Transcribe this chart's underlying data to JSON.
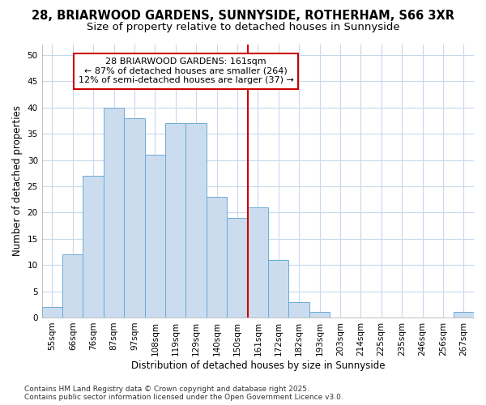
{
  "title_line1": "28, BRIARWOOD GARDENS, SUNNYSIDE, ROTHERHAM, S66 3XR",
  "title_line2": "Size of property relative to detached houses in Sunnyside",
  "xlabel": "Distribution of detached houses by size in Sunnyside",
  "ylabel": "Number of detached properties",
  "categories": [
    "55sqm",
    "66sqm",
    "76sqm",
    "87sqm",
    "97sqm",
    "108sqm",
    "119sqm",
    "129sqm",
    "140sqm",
    "150sqm",
    "161sqm",
    "172sqm",
    "182sqm",
    "193sqm",
    "203sqm",
    "214sqm",
    "225sqm",
    "235sqm",
    "246sqm",
    "256sqm",
    "267sqm"
  ],
  "values": [
    2,
    12,
    27,
    40,
    38,
    31,
    37,
    37,
    23,
    19,
    21,
    11,
    3,
    1,
    0,
    0,
    0,
    0,
    0,
    0,
    1
  ],
  "bar_color": "#ccdcef",
  "bar_edge_color": "#6aaad4",
  "red_line_index": 10,
  "red_line_color": "#cc0000",
  "annotation_text": "28 BRIARWOOD GARDENS: 161sqm\n← 87% of detached houses are smaller (264)\n12% of semi-detached houses are larger (37) →",
  "annotation_box_color": "#ffffff",
  "annotation_edge_color": "#cc0000",
  "ylim": [
    0,
    52
  ],
  "yticks": [
    0,
    5,
    10,
    15,
    20,
    25,
    30,
    35,
    40,
    45,
    50
  ],
  "footer_text": "Contains HM Land Registry data © Crown copyright and database right 2025.\nContains public sector information licensed under the Open Government Licence v3.0.",
  "grid_color": "#c8d8ee",
  "background_color": "#ffffff",
  "title_fontsize": 10.5,
  "subtitle_fontsize": 9.5,
  "axis_label_fontsize": 8.5,
  "tick_fontsize": 7.5,
  "annotation_fontsize": 8,
  "footer_fontsize": 6.5
}
